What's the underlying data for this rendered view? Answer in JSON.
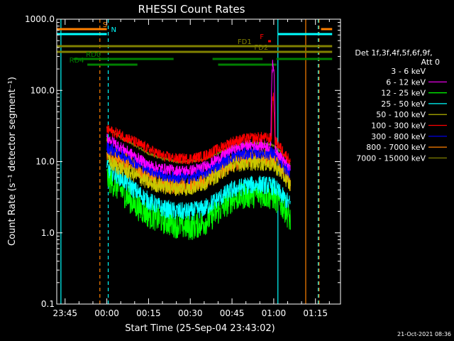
{
  "chart_data": {
    "type": "line",
    "title": "RHESSI Count Rates",
    "xlabel": "Start Time (25-Sep-04 23:43:02)",
    "ylabel": "Count Rate (s⁻¹ detector segment⁻¹)",
    "yscale": "log",
    "ylim": [
      0.1,
      1000
    ],
    "xlim_minutes": [
      -18,
      84
    ],
    "x_ticks": [
      {
        "label": "23:45",
        "min": -15
      },
      {
        "label": "00:00",
        "min": 0
      },
      {
        "label": "00:15",
        "min": 15
      },
      {
        "label": "00:30",
        "min": 30
      },
      {
        "label": "00:45",
        "min": 45
      },
      {
        "label": "01:00",
        "min": 60
      },
      {
        "label": "01:15",
        "min": 75
      }
    ],
    "y_ticks": [
      {
        "label": "1000.0",
        "v": 1000
      },
      {
        "label": "100.0",
        "v": 100
      },
      {
        "label": "10.0",
        "v": 10
      },
      {
        "label": "1.0",
        "v": 1
      },
      {
        "label": "0.1",
        "v": 0.1
      }
    ],
    "legend_header": [
      "Det 1f,3f,4f,5f,6f,9f,",
      "Att 0"
    ],
    "series": [
      {
        "name": "3 - 6 keV",
        "color": "#000000"
      },
      {
        "name": "6 - 12 keV",
        "color": "#ff00ff"
      },
      {
        "name": "12 - 25 keV",
        "color": "#00ff00"
      },
      {
        "name": "25 - 50 keV",
        "color": "#00ffff"
      },
      {
        "name": "50 - 100 keV",
        "color": "#c8c800"
      },
      {
        "name": "100 - 300 keV",
        "color": "#ff0000"
      },
      {
        "name": "300 - 800 keV",
        "color": "#0000ff"
      },
      {
        "name": "800 - 7000 keV",
        "color": "#ff8000"
      },
      {
        "name": "7000 - 15000 keV",
        "color": "#808000"
      }
    ],
    "vlines": [
      {
        "min": -16.5,
        "color": "#00ffff",
        "style": "solid"
      },
      {
        "min": -2.5,
        "color": "#ff8000",
        "style": "dashed"
      },
      {
        "min": 0.5,
        "color": "#00ffff",
        "style": "dashed"
      },
      {
        "min": 61.5,
        "color": "#00ffff",
        "style": "solid"
      },
      {
        "min": 71.5,
        "color": "#ff8000",
        "style": "solid"
      },
      {
        "min": 76,
        "color": "#00ffff",
        "style": "dashed"
      },
      {
        "min": 76.3,
        "color": "#ff8000",
        "style": "dashed"
      }
    ],
    "flag_bars": [
      {
        "label": "S",
        "color": "#ff8000",
        "segments": [
          [
            -18,
            0
          ],
          [
            77,
            81
          ]
        ],
        "label_at": -1.5
      },
      {
        "label": "N",
        "color": "#00ffff",
        "segments": [
          [
            -18,
            0
          ],
          [
            61.5,
            81
          ]
        ],
        "label_at": 1.5
      },
      {
        "label": "F",
        "color": "#ff0000",
        "segments": [
          [
            58,
            59
          ]
        ],
        "label_at": 55
      },
      {
        "label": "FD1",
        "color": "#808000",
        "segments": [
          [
            -18,
            81
          ]
        ],
        "label_at": 47
      },
      {
        "label": "FD2",
        "color": "#808000",
        "segments": [
          [
            -18,
            81
          ]
        ],
        "label_at": 53
      },
      {
        "label": "RD0",
        "color": "#008000",
        "segments": [
          [
            -12,
            24
          ],
          [
            38,
            56
          ],
          [
            61,
            81
          ]
        ],
        "label_at": -7.5
      },
      {
        "label": "RD4",
        "color": "#008000",
        "segments": [
          [
            -7,
            11
          ],
          [
            40,
            61
          ]
        ],
        "label_at": -13.5
      }
    ],
    "data_range_minutes": [
      0,
      66
    ],
    "flare_peak_minute": 60,
    "sample_values": {
      "minutes": [
        0,
        5,
        10,
        15,
        20,
        25,
        30,
        35,
        40,
        45,
        50,
        55,
        60,
        64,
        66
      ],
      "100 - 300 keV": [
        28,
        24,
        19,
        15,
        12,
        11,
        11,
        12,
        15,
        19,
        21,
        22,
        21,
        13,
        10
      ],
      "6 - 12 keV": [
        22,
        16,
        12,
        9,
        8,
        7.5,
        7.5,
        8.5,
        11,
        15,
        17,
        17,
        16,
        10,
        8
      ],
      "300 - 800 keV": [
        16,
        13,
        10,
        8,
        6.5,
        6,
        6,
        7,
        9,
        12,
        13,
        13.5,
        13,
        8.5,
        7
      ],
      "800 - 7000 keV": [
        13,
        11,
        8.5,
        6,
        5,
        4.5,
        4.5,
        5.5,
        7,
        9.5,
        11,
        11.5,
        11,
        7,
        5
      ],
      "50 - 100 keV": [
        10,
        8,
        6.5,
        5,
        4.5,
        4.2,
        4.2,
        5,
        6.5,
        9,
        9.5,
        9.5,
        9,
        6,
        4.5
      ],
      "3 - 6 keV": [
        7,
        6,
        4,
        3,
        2.5,
        2.1,
        2,
        2.5,
        3.5,
        5,
        6,
        6.5,
        5.5,
        3.5,
        1.5
      ],
      "25 - 50 keV": [
        8,
        6,
        4,
        2.8,
        2.2,
        2,
        2,
        2.2,
        3,
        4,
        4.6,
        4.8,
        4.5,
        3,
        2.5
      ],
      "12 - 25 keV": [
        6,
        4,
        2.5,
        1.8,
        1.5,
        1.3,
        1.2,
        1.4,
        2,
        3,
        3.4,
        3.5,
        3.2,
        2.2,
        1.5
      ],
      "7000 - 15000 keV": [
        30,
        22,
        17,
        13,
        11,
        10,
        10,
        11,
        13,
        16,
        18,
        18,
        17,
        12,
        9
      ]
    },
    "legend_placement": "right",
    "grid": false
  },
  "footer": {
    "timestamp": "21-Oct-2021 08:36"
  }
}
